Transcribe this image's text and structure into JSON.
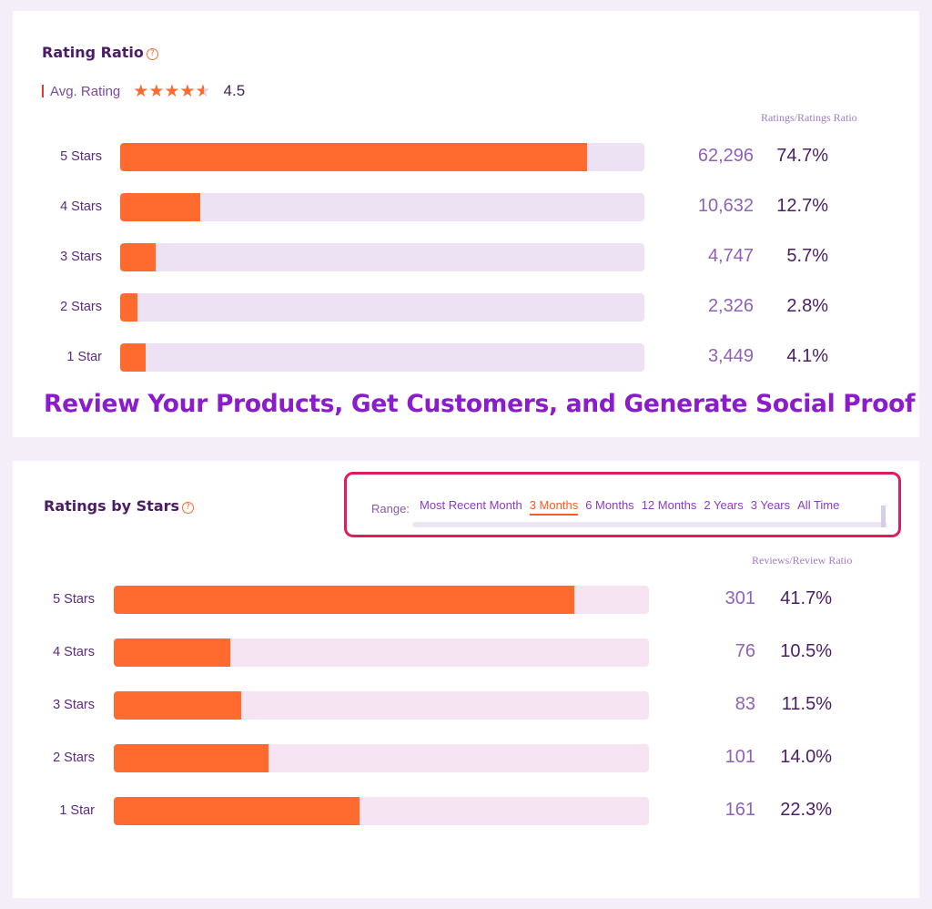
{
  "rating_ratio": {
    "title": "Rating Ratio",
    "help_icon": "?",
    "avg_label": "Avg. Rating",
    "avg_value": "4.5",
    "stars": 4.5,
    "column_header": "Ratings/Ratings Ratio",
    "rows": [
      {
        "label": "5 Stars",
        "count": "62,296",
        "ratio": "74.7%",
        "fill": 0.89
      },
      {
        "label": "4 Stars",
        "count": "10,632",
        "ratio": "12.7%",
        "fill": 0.152
      },
      {
        "label": "3 Stars",
        "count": "4,747",
        "ratio": "5.7%",
        "fill": 0.068
      },
      {
        "label": "2 Stars",
        "count": "2,326",
        "ratio": "2.8%",
        "fill": 0.033
      },
      {
        "label": "1 Star",
        "count": "3,449",
        "ratio": "4.1%",
        "fill": 0.049
      }
    ]
  },
  "headline": "Review Your Products, Get Customers, and Generate Social Proof",
  "ratings_by_stars": {
    "title": "Ratings by Stars",
    "help_icon": "?",
    "range_label": "Range:",
    "range_options": [
      "Most Recent Month",
      "3 Months",
      "6 Months",
      "12 Months",
      "2 Years",
      "3 Years",
      "All Time"
    ],
    "range_selected": "3 Months",
    "column_header": "Reviews/Review Ratio",
    "rows": [
      {
        "label": "5 Stars",
        "count": "301",
        "ratio": "41.7%",
        "fill": 0.86
      },
      {
        "label": "4 Stars",
        "count": "76",
        "ratio": "10.5%",
        "fill": 0.217
      },
      {
        "label": "3 Stars",
        "count": "83",
        "ratio": "11.5%",
        "fill": 0.238
      },
      {
        "label": "2 Stars",
        "count": "101",
        "ratio": "14.0%",
        "fill": 0.289
      },
      {
        "label": "1 Star",
        "count": "161",
        "ratio": "22.3%",
        "fill": 0.46
      }
    ]
  },
  "colors": {
    "accent": "#ff6a2e",
    "highlight_border": "#e01c5a",
    "headline": "#8a1ccc"
  }
}
